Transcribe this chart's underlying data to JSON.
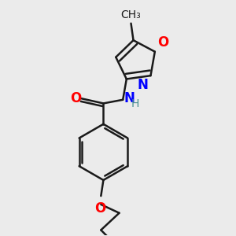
{
  "bg_color": "#ebebeb",
  "bond_color": "#1a1a1a",
  "O_color": "#ff0000",
  "N_color": "#0000ff",
  "H_color": "#4a9090",
  "bond_width": 1.8,
  "dbo": 0.012,
  "font_size": 11,
  "fig_size": [
    3.0,
    3.0
  ],
  "dpi": 100,
  "xlim": [
    0.05,
    0.95
  ],
  "ylim": [
    0.02,
    0.98
  ]
}
